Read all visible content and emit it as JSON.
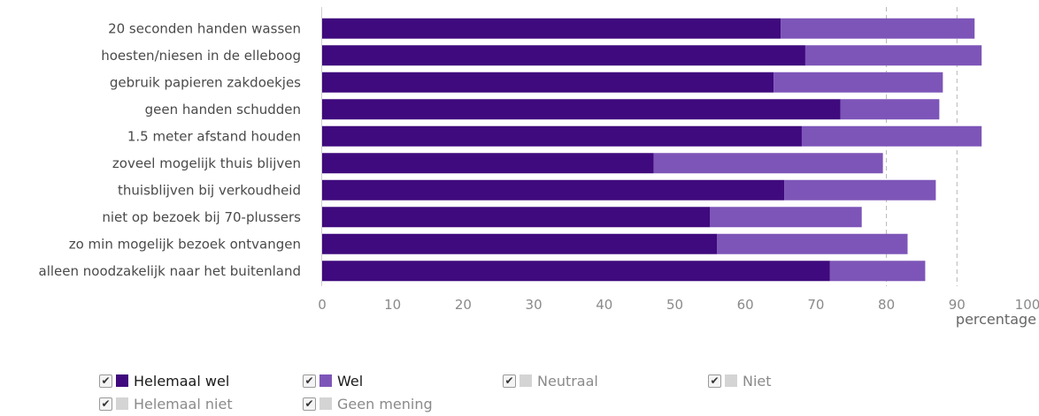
{
  "chart_data": {
    "type": "bar",
    "orientation": "horizontal",
    "stacked": true,
    "categories": [
      "20 seconden handen wassen",
      "hoesten/niesen in de elleboog",
      "gebruik papieren zakdoekjes",
      "geen handen schudden",
      "1.5 meter afstand houden",
      "zoveel mogelijk thuis blijven",
      "thuisblijven bij verkoudheid",
      "niet op bezoek bij 70-plussers",
      "zo min mogelijk bezoek ontvangen",
      "alleen noodzakelijk naar het buitenland"
    ],
    "series": [
      {
        "name": "Helemaal wel",
        "color": "#3f0a7d",
        "values": [
          65,
          68.5,
          64,
          73.5,
          68,
          47,
          65.5,
          55,
          56,
          72
        ]
      },
      {
        "name": "Wel",
        "color": "#7d55b8",
        "values": [
          27.5,
          25,
          24,
          14,
          25.5,
          32.5,
          21.5,
          21.5,
          27,
          13.5
        ]
      }
    ],
    "xlim": [
      0,
      100
    ],
    "xticks": [
      "0",
      "10",
      "20",
      "30",
      "40",
      "50",
      "60",
      "70",
      "80",
      "90",
      "100"
    ],
    "xlabel": "percentage",
    "reference_lines": [
      80,
      90
    ],
    "grid": false,
    "legend_position": "bottom"
  },
  "legend": [
    {
      "label": "Helemaal wel",
      "color": "#3f0a7d",
      "active": true,
      "check": "✔"
    },
    {
      "label": "Wel",
      "color": "#7d55b8",
      "active": true,
      "check": "✔"
    },
    {
      "label": "Neutraal",
      "color": "#d4d4d4",
      "active": false,
      "check": "✔"
    },
    {
      "label": "Niet",
      "color": "#d4d4d4",
      "active": false,
      "check": "✔"
    },
    {
      "label": "Helemaal niet",
      "color": "#d4d4d4",
      "active": false,
      "check": "✔"
    },
    {
      "label": "Geen mening",
      "color": "#d4d4d4",
      "active": false,
      "check": "✔"
    }
  ]
}
